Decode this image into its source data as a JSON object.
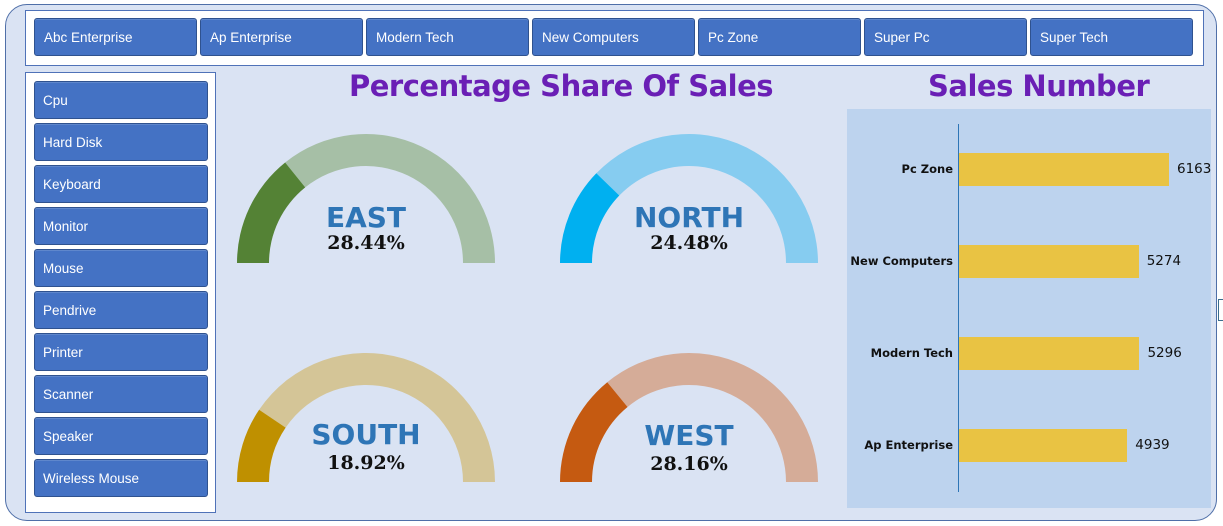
{
  "slicers": {
    "companies": [
      "Abc Enterprise",
      "Ap Enterprise",
      "Modern Tech",
      "New Computers",
      "Pc Zone",
      "Super Pc",
      "Super Tech"
    ],
    "products": [
      "Cpu",
      "Hard Disk",
      "Keyboard",
      "Monitor",
      "Mouse",
      "Pendrive",
      "Printer",
      "Scanner",
      "Speaker",
      "Wireless Mouse"
    ]
  },
  "gauges": {
    "title": "Percentage Share Of Sales",
    "items": [
      {
        "region": "EAST",
        "value_text": "28.44%",
        "pct": 28.44,
        "fill": "#548235",
        "track": "#a6bfa6"
      },
      {
        "region": "NORTH",
        "value_text": "24.48%",
        "pct": 24.48,
        "fill": "#00b0f0",
        "track": "#86ccf0"
      },
      {
        "region": "SOUTH",
        "value_text": "18.92%",
        "pct": 18.92,
        "fill": "#bf9000",
        "track": "#d4c597"
      },
      {
        "region": "WEST",
        "value_text": "28.16%",
        "pct": 28.16,
        "fill": "#c55a11",
        "track": "#d5ac98"
      }
    ]
  },
  "sales": {
    "title": "Sales Number"
  },
  "chart_data": {
    "type": "bar",
    "orientation": "horizontal",
    "title": "Sales Number",
    "categories": [
      "Pc Zone",
      "New Computers",
      "Modern Tech",
      "Ap Enterprise"
    ],
    "values": [
      6163,
      5274,
      5296,
      4939
    ],
    "data_labels": [
      "6163",
      "5274",
      "5296",
      "4939"
    ],
    "bar_color": "#e9c343",
    "xlim": [
      0,
      7000
    ],
    "grid": false,
    "legend": "none"
  },
  "colors": {
    "title": "#6a1fb5",
    "button": "#4472c4",
    "background": "#dae3f3",
    "gauge_label": "#2e75b6"
  }
}
